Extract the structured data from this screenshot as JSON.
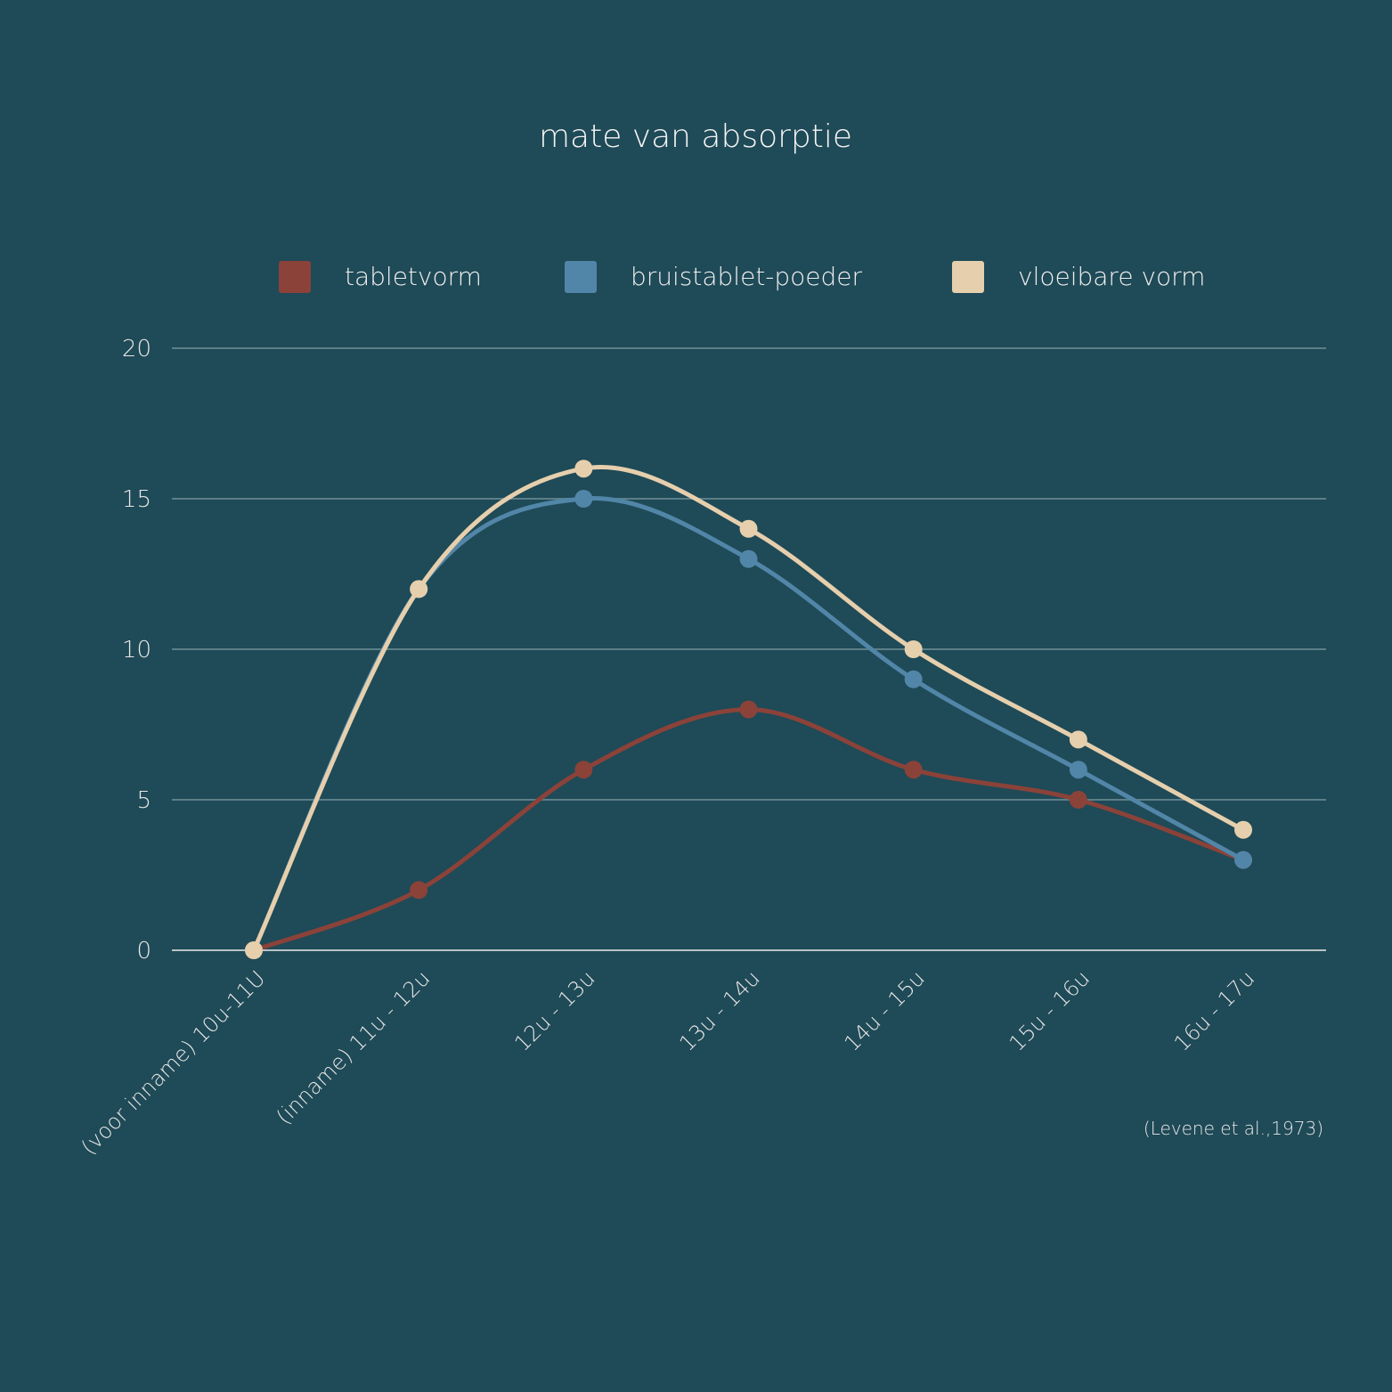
{
  "chart_data": {
    "type": "line",
    "title": "mate van absorptie",
    "xlabel": "",
    "ylabel": "",
    "categories": [
      "(voor inname) 10u-11U",
      "(inname) 11u - 12u",
      "12u - 13u",
      "13u - 14u",
      "14u - 15u",
      "15u - 16u",
      "16u - 17u"
    ],
    "ylim": [
      0,
      20
    ],
    "yticks": [
      0,
      5,
      10,
      15,
      20
    ],
    "grid": true,
    "legend_placement": "top",
    "series": [
      {
        "name": "tabletvorm",
        "color": "#8b4239",
        "values": [
          0,
          2,
          6,
          8,
          6,
          5,
          3
        ]
      },
      {
        "name": "bruistablet-poeder",
        "color": "#5186a8",
        "values": [
          0,
          12,
          15,
          13,
          9,
          6,
          3
        ]
      },
      {
        "name": "vloeibare vorm",
        "color": "#e6cfad",
        "values": [
          0,
          12,
          16,
          14,
          10,
          7,
          4
        ]
      }
    ],
    "source": "(Levene et al.,1973)"
  },
  "colors": {
    "background": "#1f4a57",
    "grid": "#5c7f88",
    "baseline": "#b8c4c4"
  }
}
